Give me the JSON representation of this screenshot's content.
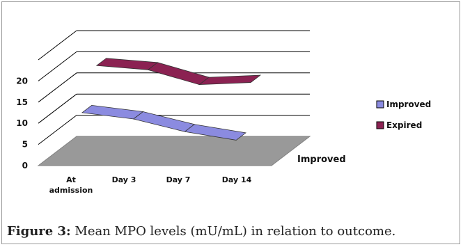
{
  "chart_data": {
    "type": "area",
    "categories": [
      "At admission",
      "Day 3",
      "Day 7",
      "Day 14"
    ],
    "y_ticks": [
      "0",
      "5",
      "10",
      "15",
      "20"
    ],
    "ylim": [
      0,
      25
    ],
    "series": [
      {
        "name": "Improved",
        "values": [
          11,
          9.5,
          6.5,
          4.5
        ],
        "color": "#8B8BE0"
      },
      {
        "name": "Expired",
        "values": [
          19.5,
          18.5,
          15,
          15.5
        ],
        "color": "#8B2252"
      }
    ],
    "depth_label": "Improved",
    "grid": true,
    "legend": "right",
    "floor_color": "#999999"
  },
  "caption": {
    "label": "Figure 3:",
    "text": " Mean MPO levels (mU/mL) in relation to outcome."
  }
}
